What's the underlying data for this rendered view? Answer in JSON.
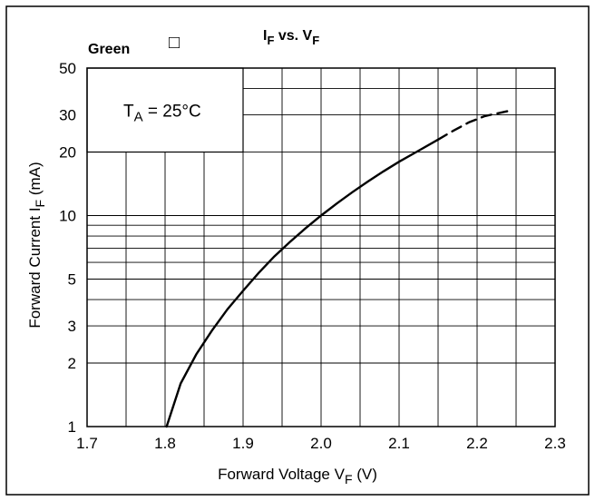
{
  "chart_data": {
    "type": "line",
    "title_main": "I",
    "title_sub": "F",
    "title_mid": " vs. V",
    "title_sub2": "F",
    "corner_label": "Green",
    "corner_glyph": "□",
    "annotation": {
      "main": "T",
      "sub": "A",
      "rest": " = 25°C"
    },
    "ylabel": {
      "main": "Forward Current  I",
      "sub": "F",
      "rest": " (mA)"
    },
    "xlabel": {
      "main": "Forward Voltage V",
      "sub": "F",
      "rest": "  (V)"
    },
    "xlim": [
      1.7,
      2.3
    ],
    "ylim": [
      1,
      50
    ],
    "yscale": "log",
    "x_ticks": [
      1.7,
      1.8,
      1.9,
      2.0,
      2.1,
      2.2,
      2.3
    ],
    "x_tick_labels": [
      "1.7",
      "1.8",
      "1.9",
      "2.0",
      "2.1",
      "2.2",
      "2.3"
    ],
    "x_grid": [
      1.75,
      1.8,
      1.85,
      1.9,
      1.95,
      2.0,
      2.05,
      2.1,
      2.15,
      2.2,
      2.25
    ],
    "y_ticks": [
      1,
      2,
      3,
      5,
      10,
      20,
      30,
      50
    ],
    "y_tick_labels": [
      "1",
      "2",
      "3",
      "5",
      "10",
      "20",
      "30",
      "50"
    ],
    "y_grid": [
      2,
      3,
      4,
      5,
      6,
      7,
      8,
      9,
      10,
      20,
      30,
      40
    ],
    "grid": true,
    "series": [
      {
        "style": "solid",
        "points": [
          [
            1.802,
            1.0
          ],
          [
            1.82,
            1.6
          ],
          [
            1.84,
            2.2
          ],
          [
            1.86,
            2.85
          ],
          [
            1.88,
            3.6
          ],
          [
            1.9,
            4.4
          ],
          [
            1.92,
            5.35
          ],
          [
            1.94,
            6.4
          ],
          [
            1.96,
            7.5
          ],
          [
            1.98,
            8.7
          ],
          [
            2.0,
            10.0
          ],
          [
            2.02,
            11.4
          ],
          [
            2.04,
            12.9
          ],
          [
            2.06,
            14.5
          ],
          [
            2.08,
            16.2
          ],
          [
            2.1,
            18.0
          ],
          [
            2.12,
            19.8
          ],
          [
            2.15,
            22.9
          ]
        ]
      },
      {
        "style": "dashed",
        "points": [
          [
            2.15,
            22.9
          ],
          [
            2.17,
            25.3
          ],
          [
            2.19,
            27.7
          ],
          [
            2.21,
            29.6
          ],
          [
            2.24,
            31.3
          ]
        ]
      }
    ]
  }
}
